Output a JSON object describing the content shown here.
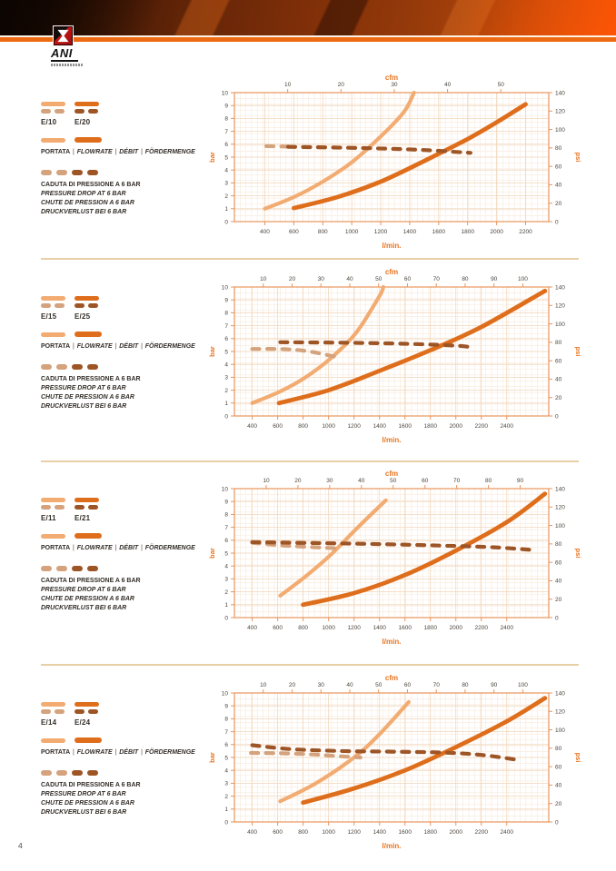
{
  "page": {
    "number": "4"
  },
  "brand": {
    "name": "ANI"
  },
  "colors": {
    "accent": "#ED6A13",
    "flow_light": "#F2AC72",
    "flow_dark": "#DE6E1C",
    "drop_light": "#D4A27C",
    "drop_dark": "#9E5526",
    "axis": "#E9955C",
    "grid_minor": "#F8E9DB",
    "grid_major": "#F1D6BB",
    "tick_text": "#4B443C",
    "axis_label": "#E9731E"
  },
  "legend": {
    "portata": "PORTATA",
    "flowrate": "FLOWRATE",
    "debit": "DÉBIT",
    "fordermenge": "FÖRDERMENGE",
    "drop_lines": [
      "CADUTA DI PRESSIONE A 6 BAR",
      "PRESSURE DROP AT 6 BAR",
      "CHUTE DE PRESSION A 6 BAR",
      "DRUCKVERLUST BEI 6 BAR"
    ]
  },
  "sections": [
    {
      "model_light": "E/10",
      "model_dark": "E/20"
    },
    {
      "model_light": "E/15",
      "model_dark": "E/25"
    },
    {
      "model_light": "E/11",
      "model_dark": "E/21"
    },
    {
      "model_light": "E/14",
      "model_dark": "E/24"
    }
  ],
  "chart_data": [
    {
      "type": "line",
      "models": [
        "E/10",
        "E/20"
      ],
      "x_label": "l/min.",
      "x2_label": "cfm",
      "y_label_left": "bar",
      "y_label_right": "psi",
      "x_range": [
        190,
        2360
      ],
      "x_ticks": [
        400,
        600,
        800,
        1000,
        1200,
        1400,
        1600,
        1800,
        2000,
        2200
      ],
      "cfm_range": [
        0,
        59
      ],
      "cfm_ticks": [
        10,
        20,
        30,
        40,
        50
      ],
      "y_left_ticks": [
        0,
        1,
        2,
        3,
        4,
        5,
        6,
        7,
        8,
        9,
        10
      ],
      "y_right_ticks": [
        0,
        20,
        40,
        60,
        80,
        100,
        120,
        140
      ],
      "grid": true,
      "legend_position": "left",
      "series": [
        {
          "name": "E/10 flowrate",
          "style": "solid",
          "color_key": "flow_light",
          "points": [
            [
              400,
              1.0
            ],
            [
              600,
              1.9
            ],
            [
              800,
              3.1
            ],
            [
              1000,
              4.6
            ],
            [
              1200,
              6.6
            ],
            [
              1360,
              8.5
            ],
            [
              1430,
              10
            ]
          ]
        },
        {
          "name": "E/20 flowrate",
          "style": "solid",
          "color_key": "flow_dark",
          "points": [
            [
              600,
              1.05
            ],
            [
              900,
              1.9
            ],
            [
              1200,
              3.1
            ],
            [
              1500,
              4.7
            ],
            [
              1800,
              6.4
            ],
            [
              2000,
              7.7
            ],
            [
              2200,
              9.1
            ]
          ]
        },
        {
          "name": "E/10 pressure drop at 6 bar",
          "style": "dashed",
          "color_key": "drop_light",
          "points": [
            [
              410,
              5.85
            ],
            [
              560,
              5.82
            ]
          ]
        },
        {
          "name": "E/20 pressure drop at 6 bar",
          "style": "dashed",
          "color_key": "drop_dark",
          "points": [
            [
              560,
              5.8
            ],
            [
              1100,
              5.7
            ],
            [
              1500,
              5.55
            ],
            [
              1820,
              5.33
            ]
          ]
        }
      ]
    },
    {
      "type": "line",
      "models": [
        "E/15",
        "E/25"
      ],
      "x_label": "l/min.",
      "x2_label": "cfm",
      "y_label_left": "bar",
      "y_label_right": "psi",
      "x_range": [
        260,
        2730
      ],
      "x_ticks": [
        400,
        600,
        800,
        1000,
        1200,
        1400,
        1600,
        1800,
        2000,
        2200,
        2400
      ],
      "cfm_range": [
        0,
        109
      ],
      "cfm_ticks": [
        10,
        20,
        30,
        40,
        50,
        60,
        70,
        80,
        90,
        100
      ],
      "y_left_ticks": [
        0,
        1,
        2,
        3,
        4,
        5,
        6,
        7,
        8,
        9,
        10
      ],
      "y_right_ticks": [
        0,
        20,
        40,
        60,
        80,
        100,
        120,
        140
      ],
      "grid": true,
      "legend_position": "left",
      "series": [
        {
          "name": "E/15 flowrate",
          "style": "solid",
          "color_key": "flow_light",
          "points": [
            [
              400,
              1.0
            ],
            [
              620,
              1.9
            ],
            [
              820,
              3.0
            ],
            [
              1020,
              4.5
            ],
            [
              1220,
              6.5
            ],
            [
              1400,
              9.3
            ],
            [
              1430,
              10
            ]
          ]
        },
        {
          "name": "E/25 flowrate",
          "style": "solid",
          "color_key": "flow_dark",
          "points": [
            [
              610,
              1.0
            ],
            [
              1000,
              2.0
            ],
            [
              1400,
              3.5
            ],
            [
              1800,
              5.1
            ],
            [
              2200,
              6.9
            ],
            [
              2700,
              9.7
            ]
          ]
        },
        {
          "name": "E/15 pressure drop at 6 bar",
          "style": "dashed",
          "color_key": "drop_light",
          "points": [
            [
              400,
              5.2
            ],
            [
              650,
              5.18
            ],
            [
              850,
              5.0
            ],
            [
              1070,
              4.55
            ]
          ]
        },
        {
          "name": "E/25 pressure drop at 6 bar",
          "style": "dashed",
          "color_key": "drop_dark",
          "points": [
            [
              620,
              5.72
            ],
            [
              1100,
              5.68
            ],
            [
              1600,
              5.6
            ],
            [
              2000,
              5.45
            ],
            [
              2140,
              5.3
            ]
          ]
        }
      ]
    },
    {
      "type": "line",
      "models": [
        "E/11",
        "E/21"
      ],
      "x_label": "l/min.",
      "x2_label": "cfm",
      "y_label_left": "bar",
      "y_label_right": "psi",
      "x_range": [
        260,
        2730
      ],
      "x_ticks": [
        400,
        600,
        800,
        1000,
        1200,
        1400,
        1600,
        1800,
        2000,
        2200,
        2400
      ],
      "cfm_range": [
        0,
        99
      ],
      "cfm_ticks": [
        10,
        20,
        30,
        40,
        50,
        60,
        70,
        80,
        90
      ],
      "y_left_ticks": [
        0,
        1,
        2,
        3,
        4,
        5,
        6,
        7,
        8,
        9,
        10
      ],
      "y_right_ticks": [
        0,
        20,
        40,
        60,
        80,
        100,
        120,
        140
      ],
      "grid": true,
      "legend_position": "left",
      "series": [
        {
          "name": "E/11 flowrate",
          "style": "solid",
          "color_key": "flow_light",
          "points": [
            [
              620,
              1.7
            ],
            [
              820,
              3.2
            ],
            [
              1020,
              4.9
            ],
            [
              1220,
              6.9
            ],
            [
              1450,
              9.1
            ]
          ]
        },
        {
          "name": "E/21 flowrate",
          "style": "solid",
          "color_key": "flow_dark",
          "points": [
            [
              800,
              1.0
            ],
            [
              1200,
              1.9
            ],
            [
              1600,
              3.3
            ],
            [
              2000,
              5.2
            ],
            [
              2400,
              7.4
            ],
            [
              2700,
              9.6
            ]
          ]
        },
        {
          "name": "E/11 pressure drop at 6 bar",
          "style": "dashed",
          "color_key": "drop_light",
          "points": [
            [
              400,
              5.8
            ],
            [
              600,
              5.62
            ],
            [
              800,
              5.5
            ],
            [
              1050,
              5.38
            ]
          ]
        },
        {
          "name": "E/21 pressure drop at 6 bar",
          "style": "dashed",
          "color_key": "drop_dark",
          "points": [
            [
              400,
              5.85
            ],
            [
              900,
              5.78
            ],
            [
              1400,
              5.7
            ],
            [
              1900,
              5.58
            ],
            [
              2300,
              5.45
            ],
            [
              2600,
              5.25
            ]
          ]
        }
      ]
    },
    {
      "type": "line",
      "models": [
        "E/14",
        "E/24"
      ],
      "x_label": "l/min.",
      "x2_label": "cfm",
      "y_label_left": "bar",
      "y_label_right": "psi",
      "x_range": [
        260,
        2730
      ],
      "x_ticks": [
        400,
        600,
        800,
        1000,
        1200,
        1400,
        1600,
        1800,
        2000,
        2200,
        2400
      ],
      "cfm_range": [
        0,
        109
      ],
      "cfm_ticks": [
        10,
        20,
        30,
        40,
        50,
        60,
        70,
        80,
        90,
        100
      ],
      "y_left_ticks": [
        0,
        1,
        2,
        3,
        4,
        5,
        6,
        7,
        8,
        9,
        10
      ],
      "y_right_ticks": [
        0,
        20,
        40,
        60,
        80,
        100,
        120,
        140
      ],
      "grid": true,
      "legend_position": "left",
      "series": [
        {
          "name": "E/14 flowrate",
          "style": "solid",
          "color_key": "flow_light",
          "points": [
            [
              620,
              1.6
            ],
            [
              900,
              3.0
            ],
            [
              1200,
              5.0
            ],
            [
              1400,
              6.8
            ],
            [
              1630,
              9.3
            ]
          ]
        },
        {
          "name": "E/24 flowrate",
          "style": "solid",
          "color_key": "flow_dark",
          "points": [
            [
              800,
              1.5
            ],
            [
              1200,
              2.6
            ],
            [
              1600,
              4.0
            ],
            [
              2000,
              5.8
            ],
            [
              2400,
              7.8
            ],
            [
              2700,
              9.6
            ]
          ]
        },
        {
          "name": "E/14 pressure drop at 6 bar",
          "style": "dashed",
          "color_key": "drop_light",
          "points": [
            [
              390,
              5.35
            ],
            [
              600,
              5.33
            ],
            [
              850,
              5.25
            ],
            [
              1050,
              5.12
            ],
            [
              1250,
              5.0
            ]
          ]
        },
        {
          "name": "E/24 pressure drop at 6 bar",
          "style": "dashed",
          "color_key": "drop_dark",
          "points": [
            [
              400,
              5.95
            ],
            [
              700,
              5.65
            ],
            [
              1100,
              5.5
            ],
            [
              1500,
              5.45
            ],
            [
              1900,
              5.38
            ],
            [
              2200,
              5.2
            ],
            [
              2460,
              4.85
            ]
          ]
        }
      ]
    }
  ],
  "layout": {
    "section_tops": [
      78,
      292,
      514,
      739
    ],
    "divider_tops": [
      284,
      507,
      731
    ]
  }
}
